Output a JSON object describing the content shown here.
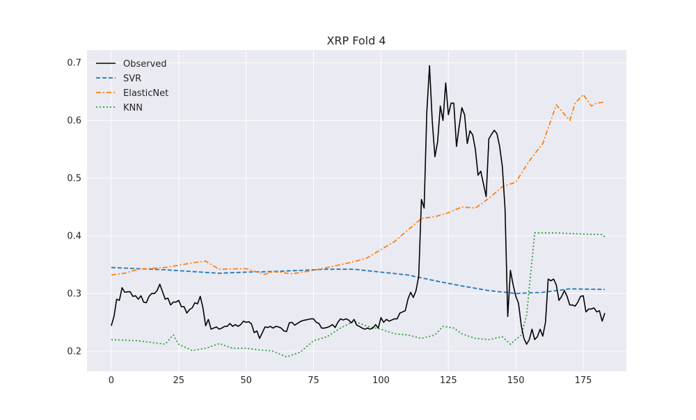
{
  "chart_data": {
    "type": "line",
    "title": "XRP Fold 4",
    "xlabel": "",
    "ylabel": "",
    "xlim": [
      -9,
      191
    ],
    "ylim": [
      0.165,
      0.722
    ],
    "x_ticks": [
      0,
      25,
      50,
      75,
      100,
      125,
      150,
      175
    ],
    "y_ticks": [
      0.2,
      0.3,
      0.4,
      0.5,
      0.6,
      0.7
    ],
    "grid": true,
    "legend_position": "top-left",
    "series": [
      {
        "name": "Observed",
        "color": "#000000",
        "style": "solid",
        "points": [
          [
            0,
            0.244
          ],
          [
            1,
            0.26
          ],
          [
            2,
            0.29
          ],
          [
            3,
            0.288
          ],
          [
            4,
            0.31
          ],
          [
            5,
            0.302
          ],
          [
            6,
            0.303
          ],
          [
            7,
            0.303
          ],
          [
            8,
            0.295
          ],
          [
            9,
            0.296
          ],
          [
            10,
            0.29
          ],
          [
            11,
            0.296
          ],
          [
            12,
            0.285
          ],
          [
            13,
            0.284
          ],
          [
            14,
            0.295
          ],
          [
            15,
            0.3
          ],
          [
            16,
            0.3
          ],
          [
            17,
            0.305
          ],
          [
            18,
            0.316
          ],
          [
            19,
            0.303
          ],
          [
            20,
            0.29
          ],
          [
            21,
            0.292
          ],
          [
            22,
            0.28
          ],
          [
            23,
            0.285
          ],
          [
            24,
            0.285
          ],
          [
            25,
            0.288
          ],
          [
            26,
            0.277
          ],
          [
            27,
            0.277
          ],
          [
            28,
            0.266
          ],
          [
            29,
            0.272
          ],
          [
            30,
            0.275
          ],
          [
            31,
            0.284
          ],
          [
            32,
            0.282
          ],
          [
            33,
            0.295
          ],
          [
            34,
            0.275
          ],
          [
            35,
            0.244
          ],
          [
            36,
            0.255
          ],
          [
            37,
            0.238
          ],
          [
            38,
            0.24
          ],
          [
            39,
            0.242
          ],
          [
            40,
            0.238
          ],
          [
            41,
            0.24
          ],
          [
            42,
            0.243
          ],
          [
            43,
            0.243
          ],
          [
            44,
            0.248
          ],
          [
            45,
            0.243
          ],
          [
            46,
            0.246
          ],
          [
            47,
            0.243
          ],
          [
            48,
            0.246
          ],
          [
            49,
            0.252
          ],
          [
            50,
            0.25
          ],
          [
            51,
            0.251
          ],
          [
            52,
            0.247
          ],
          [
            53,
            0.232
          ],
          [
            54,
            0.235
          ],
          [
            55,
            0.222
          ],
          [
            56,
            0.232
          ],
          [
            57,
            0.242
          ],
          [
            58,
            0.241
          ],
          [
            59,
            0.243
          ],
          [
            60,
            0.24
          ],
          [
            61,
            0.243
          ],
          [
            62,
            0.242
          ],
          [
            63,
            0.24
          ],
          [
            64,
            0.235
          ],
          [
            65,
            0.234
          ],
          [
            66,
            0.249
          ],
          [
            67,
            0.25
          ],
          [
            68,
            0.245
          ],
          [
            69,
            0.248
          ],
          [
            70,
            0.251
          ],
          [
            71,
            0.253
          ],
          [
            72,
            0.254
          ],
          [
            73,
            0.255
          ],
          [
            74,
            0.256
          ],
          [
            75,
            0.256
          ],
          [
            76,
            0.25
          ],
          [
            77,
            0.248
          ],
          [
            78,
            0.24
          ],
          [
            79,
            0.24
          ],
          [
            80,
            0.241
          ],
          [
            81,
            0.243
          ],
          [
            82,
            0.246
          ],
          [
            83,
            0.241
          ],
          [
            84,
            0.25
          ],
          [
            85,
            0.256
          ],
          [
            86,
            0.254
          ],
          [
            87,
            0.256
          ],
          [
            88,
            0.254
          ],
          [
            89,
            0.249
          ],
          [
            90,
            0.255
          ],
          [
            91,
            0.245
          ],
          [
            92,
            0.243
          ],
          [
            93,
            0.24
          ],
          [
            94,
            0.238
          ],
          [
            95,
            0.24
          ],
          [
            96,
            0.238
          ],
          [
            97,
            0.24
          ],
          [
            98,
            0.246
          ],
          [
            99,
            0.24
          ],
          [
            100,
            0.258
          ],
          [
            101,
            0.25
          ],
          [
            102,
            0.255
          ],
          [
            103,
            0.252
          ],
          [
            104,
            0.254
          ],
          [
            105,
            0.256
          ],
          [
            106,
            0.256
          ],
          [
            107,
            0.266
          ],
          [
            108,
            0.268
          ],
          [
            109,
            0.27
          ],
          [
            110,
            0.29
          ],
          [
            111,
            0.302
          ],
          [
            112,
            0.293
          ],
          [
            113,
            0.305
          ],
          [
            114,
            0.33
          ],
          [
            115,
            0.463
          ],
          [
            116,
            0.448
          ],
          [
            117,
            0.615
          ],
          [
            118,
            0.695
          ],
          [
            119,
            0.6
          ],
          [
            120,
            0.537
          ],
          [
            121,
            0.563
          ],
          [
            122,
            0.625
          ],
          [
            123,
            0.6
          ],
          [
            124,
            0.665
          ],
          [
            125,
            0.61
          ],
          [
            126,
            0.63
          ],
          [
            127,
            0.63
          ],
          [
            128,
            0.555
          ],
          [
            129,
            0.59
          ],
          [
            130,
            0.622
          ],
          [
            131,
            0.61
          ],
          [
            132,
            0.56
          ],
          [
            133,
            0.582
          ],
          [
            134,
            0.575
          ],
          [
            135,
            0.55
          ],
          [
            136,
            0.505
          ],
          [
            137,
            0.512
          ],
          [
            138,
            0.49
          ],
          [
            139,
            0.468
          ],
          [
            140,
            0.568
          ],
          [
            141,
            0.576
          ],
          [
            142,
            0.583
          ],
          [
            143,
            0.577
          ],
          [
            144,
            0.555
          ],
          [
            145,
            0.52
          ],
          [
            146,
            0.447
          ],
          [
            147,
            0.26
          ],
          [
            148,
            0.34
          ],
          [
            149,
            0.315
          ],
          [
            150,
            0.295
          ],
          [
            151,
            0.283
          ],
          [
            152,
            0.245
          ],
          [
            153,
            0.222
          ],
          [
            154,
            0.212
          ],
          [
            155,
            0.22
          ],
          [
            156,
            0.238
          ],
          [
            157,
            0.22
          ],
          [
            158,
            0.225
          ],
          [
            159,
            0.238
          ],
          [
            160,
            0.226
          ],
          [
            161,
            0.25
          ],
          [
            162,
            0.325
          ],
          [
            163,
            0.322
          ],
          [
            164,
            0.325
          ],
          [
            165,
            0.315
          ],
          [
            166,
            0.288
          ],
          [
            167,
            0.295
          ],
          [
            168,
            0.305
          ],
          [
            169,
            0.295
          ],
          [
            170,
            0.28
          ],
          [
            171,
            0.28
          ],
          [
            172,
            0.278
          ],
          [
            173,
            0.285
          ],
          [
            174,
            0.295
          ],
          [
            175,
            0.296
          ],
          [
            176,
            0.268
          ],
          [
            177,
            0.273
          ],
          [
            178,
            0.273
          ],
          [
            179,
            0.275
          ],
          [
            180,
            0.268
          ],
          [
            181,
            0.27
          ],
          [
            182,
            0.252
          ],
          [
            183,
            0.266
          ]
        ]
      },
      {
        "name": "SVR",
        "color": "#1f77b4",
        "style": "dashed",
        "points": [
          [
            0,
            0.345
          ],
          [
            10,
            0.343
          ],
          [
            20,
            0.341
          ],
          [
            30,
            0.338
          ],
          [
            40,
            0.335
          ],
          [
            50,
            0.337
          ],
          [
            60,
            0.338
          ],
          [
            70,
            0.34
          ],
          [
            80,
            0.342
          ],
          [
            90,
            0.342
          ],
          [
            100,
            0.337
          ],
          [
            110,
            0.332
          ],
          [
            120,
            0.322
          ],
          [
            130,
            0.313
          ],
          [
            140,
            0.305
          ],
          [
            150,
            0.3
          ],
          [
            160,
            0.302
          ],
          [
            170,
            0.308
          ],
          [
            183,
            0.307
          ]
        ]
      },
      {
        "name": "ElasticNet",
        "color": "#ff7f0e",
        "style": "dashdot",
        "points": [
          [
            0,
            0.332
          ],
          [
            5,
            0.335
          ],
          [
            10,
            0.342
          ],
          [
            20,
            0.345
          ],
          [
            30,
            0.353
          ],
          [
            35,
            0.356
          ],
          [
            40,
            0.342
          ],
          [
            50,
            0.343
          ],
          [
            57,
            0.333
          ],
          [
            60,
            0.338
          ],
          [
            67,
            0.334
          ],
          [
            75,
            0.34
          ],
          [
            80,
            0.345
          ],
          [
            90,
            0.355
          ],
          [
            95,
            0.362
          ],
          [
            100,
            0.376
          ],
          [
            105,
            0.39
          ],
          [
            110,
            0.41
          ],
          [
            115,
            0.43
          ],
          [
            120,
            0.433
          ],
          [
            125,
            0.44
          ],
          [
            130,
            0.45
          ],
          [
            135,
            0.448
          ],
          [
            140,
            0.465
          ],
          [
            145,
            0.485
          ],
          [
            150,
            0.493
          ],
          [
            155,
            0.53
          ],
          [
            160,
            0.56
          ],
          [
            165,
            0.627
          ],
          [
            170,
            0.6
          ],
          [
            172,
            0.63
          ],
          [
            175,
            0.645
          ],
          [
            178,
            0.625
          ],
          [
            180,
            0.63
          ],
          [
            183,
            0.632
          ]
        ]
      },
      {
        "name": "KNN",
        "color": "#2ca02c",
        "style": "dotted",
        "points": [
          [
            0,
            0.22
          ],
          [
            10,
            0.218
          ],
          [
            20,
            0.212
          ],
          [
            23,
            0.228
          ],
          [
            25,
            0.212
          ],
          [
            30,
            0.201
          ],
          [
            35,
            0.205
          ],
          [
            40,
            0.213
          ],
          [
            45,
            0.205
          ],
          [
            50,
            0.205
          ],
          [
            55,
            0.202
          ],
          [
            60,
            0.2
          ],
          [
            65,
            0.19
          ],
          [
            70,
            0.198
          ],
          [
            75,
            0.218
          ],
          [
            80,
            0.225
          ],
          [
            85,
            0.24
          ],
          [
            90,
            0.252
          ],
          [
            95,
            0.243
          ],
          [
            100,
            0.238
          ],
          [
            105,
            0.23
          ],
          [
            110,
            0.228
          ],
          [
            115,
            0.222
          ],
          [
            120,
            0.228
          ],
          [
            123,
            0.243
          ],
          [
            127,
            0.24
          ],
          [
            130,
            0.23
          ],
          [
            135,
            0.222
          ],
          [
            140,
            0.22
          ],
          [
            145,
            0.225
          ],
          [
            148,
            0.212
          ],
          [
            152,
            0.228
          ],
          [
            154,
            0.262
          ],
          [
            157,
            0.405
          ],
          [
            165,
            0.405
          ],
          [
            175,
            0.403
          ],
          [
            182,
            0.402
          ],
          [
            183,
            0.398
          ]
        ]
      }
    ]
  }
}
